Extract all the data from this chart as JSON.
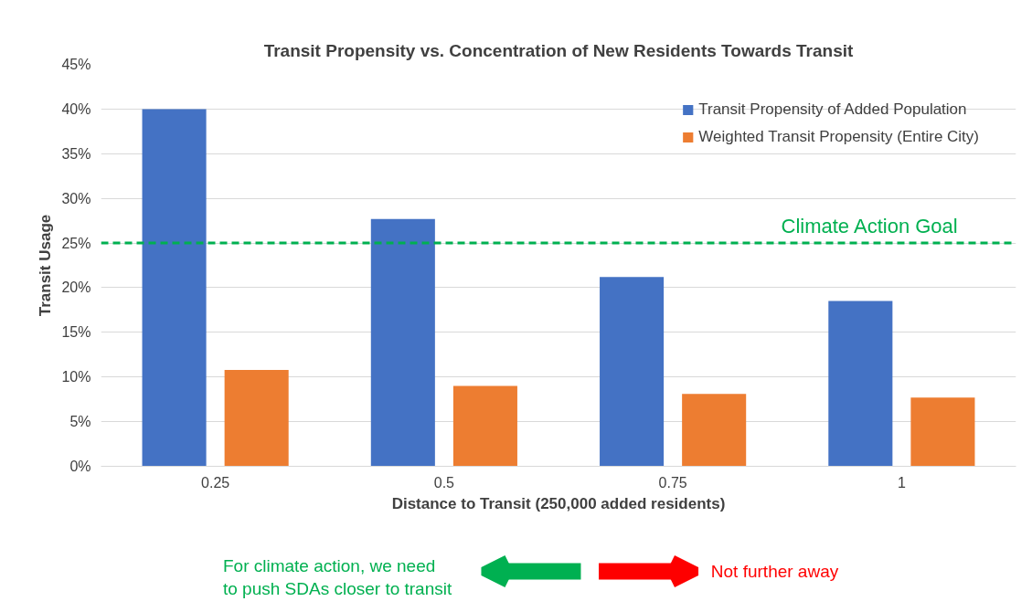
{
  "chart_data": {
    "type": "bar",
    "title": "Transit Propensity vs. Concentration of New Residents Towards Transit",
    "xlabel": "Distance to Transit (250,000 added residents)",
    "ylabel": "Transit Usage",
    "categories": [
      "0.25",
      "0.5",
      "0.75",
      "1"
    ],
    "series": [
      {
        "name": "Transit Propensity of Added Population",
        "color": "#4472c4",
        "values": [
          40,
          27.7,
          21.2,
          18.5
        ]
      },
      {
        "name": "Weighted Transit Propensity (Entire City)",
        "color": "#ed7d31",
        "values": [
          10.8,
          9.0,
          8.1,
          7.7
        ]
      }
    ],
    "ylim": [
      0,
      45
    ],
    "yticks": [
      {
        "value": 0,
        "label": "0%"
      },
      {
        "value": 5,
        "label": "5%"
      },
      {
        "value": 10,
        "label": "10%"
      },
      {
        "value": 15,
        "label": "15%"
      },
      {
        "value": 20,
        "label": "20%"
      },
      {
        "value": 25,
        "label": "25%"
      },
      {
        "value": 30,
        "label": "30%"
      },
      {
        "value": 35,
        "label": "35%"
      },
      {
        "value": 40,
        "label": "40%"
      },
      {
        "value": 45,
        "label": "45%"
      }
    ],
    "grid": "y",
    "legend": "top right",
    "ref_lines": [
      {
        "axis": "y",
        "value": 25,
        "label": "Climate Action Goal",
        "color": "#00b050",
        "line_style": "dashed"
      }
    ],
    "annotations": [
      "For climate action, we need\nto push SDAs closer to transit",
      "Not further away"
    ]
  }
}
